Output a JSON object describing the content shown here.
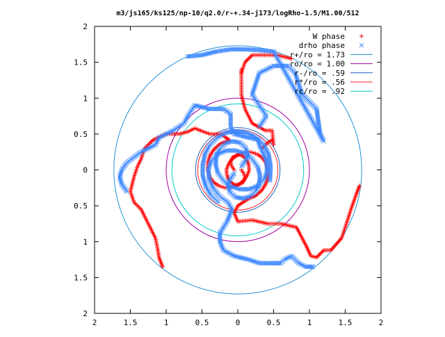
{
  "chart_data": {
    "type": "scatter",
    "title": "m3/js165/ks125/np-10/q2.0/r-+.34-j173/logRho-1.5/M1.00/512",
    "xlabel": "",
    "ylabel": "",
    "xlim": [
      -2,
      2
    ],
    "ylim": [
      -2,
      2
    ],
    "x_ticks": [
      -2,
      -1.5,
      -1,
      -0.5,
      0,
      0.5,
      1,
      1.5,
      2
    ],
    "y_ticks": [
      -2,
      -1.5,
      -1,
      -0.5,
      0,
      0.5,
      1,
      1.5,
      2
    ],
    "x_tick_labels": [
      "2",
      "1.5",
      "1",
      "0.5",
      "0",
      "0.5",
      "1",
      "1.5",
      "2"
    ],
    "y_tick_labels": [
      "2",
      "1.5",
      "1",
      "0.5",
      "0",
      "0.5",
      "1",
      "1.5",
      "2"
    ],
    "grid": false,
    "legend_position": "top-right",
    "series": [
      {
        "name": "W phase",
        "marker": "plus",
        "color": "#ff0000",
        "arms": [
          [
            [
              -0.05,
              0.0
            ],
            [
              -0.09,
              0.06
            ],
            [
              -0.1,
              0.12
            ],
            [
              -0.07,
              0.18
            ],
            [
              -0.01,
              0.21
            ],
            [
              0.06,
              0.2
            ],
            [
              0.12,
              0.15
            ],
            [
              0.15,
              0.08
            ],
            [
              0.16,
              0.0
            ],
            [
              0.13,
              -0.08
            ],
            [
              0.08,
              -0.15
            ],
            [
              0.0,
              -0.21
            ],
            [
              -0.09,
              -0.24
            ],
            [
              -0.18,
              -0.25
            ],
            [
              -0.27,
              -0.22
            ],
            [
              -0.34,
              -0.17
            ],
            [
              -0.39,
              -0.1
            ],
            [
              -0.42,
              0.0
            ],
            [
              -0.42,
              0.1
            ],
            [
              -0.39,
              0.2
            ],
            [
              -0.33,
              0.29
            ],
            [
              -0.25,
              0.36
            ],
            [
              -0.18,
              0.39
            ],
            [
              -0.12,
              0.42
            ],
            [
              -0.24,
              0.5
            ],
            [
              -0.39,
              0.5
            ],
            [
              -0.5,
              0.54
            ],
            [
              -0.6,
              0.58
            ],
            [
              -0.7,
              0.53
            ],
            [
              -0.82,
              0.5
            ],
            [
              -1.0,
              0.5
            ],
            [
              -1.18,
              0.42
            ],
            [
              -1.3,
              0.3
            ],
            [
              -1.35,
              0.15
            ],
            [
              -1.4,
              0.05
            ],
            [
              -1.45,
              -0.1
            ],
            [
              -1.5,
              -0.3
            ],
            [
              -1.45,
              -0.45
            ],
            [
              -1.4,
              -0.5
            ],
            [
              -1.35,
              -0.55
            ],
            [
              -1.25,
              -0.75
            ],
            [
              -1.15,
              -0.95
            ],
            [
              -1.12,
              -1.1
            ],
            [
              -1.1,
              -1.22
            ],
            [
              -1.05,
              -1.35
            ]
          ],
          [
            [
              0.05,
              0.0
            ],
            [
              0.09,
              -0.06
            ],
            [
              0.1,
              -0.12
            ],
            [
              0.07,
              -0.18
            ],
            [
              0.01,
              -0.21
            ],
            [
              -0.06,
              -0.2
            ],
            [
              -0.12,
              -0.15
            ],
            [
              -0.15,
              -0.08
            ],
            [
              -0.16,
              0.0
            ],
            [
              -0.13,
              0.08
            ],
            [
              -0.08,
              0.15
            ],
            [
              0.0,
              0.21
            ],
            [
              0.09,
              0.24
            ],
            [
              0.18,
              0.25
            ],
            [
              0.27,
              0.22
            ],
            [
              0.34,
              0.17
            ],
            [
              0.39,
              0.1
            ],
            [
              0.42,
              0.0
            ],
            [
              0.42,
              -0.1
            ],
            [
              0.39,
              -0.2
            ],
            [
              0.33,
              -0.29
            ],
            [
              0.25,
              -0.36
            ],
            [
              0.18,
              -0.39
            ],
            [
              0.12,
              -0.42
            ],
            [
              0.0,
              -0.5
            ],
            [
              -0.05,
              -0.6
            ],
            [
              0.0,
              -0.72
            ],
            [
              0.2,
              -0.7
            ],
            [
              0.42,
              -0.75
            ],
            [
              0.6,
              -0.75
            ],
            [
              0.82,
              -0.8
            ],
            [
              0.95,
              -1.05
            ],
            [
              1.02,
              -1.2
            ],
            [
              1.1,
              -1.22
            ],
            [
              1.2,
              -1.12
            ],
            [
              1.3,
              -1.12
            ],
            [
              1.45,
              -0.95
            ],
            [
              1.5,
              -0.8
            ],
            [
              1.58,
              -0.55
            ],
            [
              1.65,
              -0.35
            ],
            [
              1.7,
              -0.22
            ]
          ],
          [
            [
              0.34,
              0.3
            ],
            [
              0.42,
              0.38
            ],
            [
              0.48,
              0.42
            ],
            [
              0.5,
              0.35
            ],
            [
              0.48,
              0.55
            ],
            [
              0.38,
              0.55
            ],
            [
              0.2,
              0.65
            ],
            [
              0.1,
              0.85
            ],
            [
              0.05,
              1.05
            ],
            [
              0.05,
              1.2
            ],
            [
              0.05,
              1.4
            ],
            [
              0.05,
              1.35
            ],
            [
              0.1,
              1.5
            ],
            [
              0.2,
              1.6
            ],
            [
              0.35,
              1.6
            ],
            [
              0.55,
              1.6
            ],
            [
              0.75,
              1.55
            ]
          ]
        ]
      },
      {
        "name": "drho phase",
        "marker": "cross",
        "color": "#3a86ff",
        "arms": [
          [
            [
              0.05,
              0.05
            ],
            [
              0.11,
              0.13
            ],
            [
              0.14,
              0.22
            ],
            [
              0.11,
              0.31
            ],
            [
              0.03,
              0.38
            ],
            [
              -0.07,
              0.4
            ],
            [
              -0.17,
              0.37
            ],
            [
              -0.25,
              0.3
            ],
            [
              -0.3,
              0.2
            ],
            [
              -0.31,
              0.08
            ],
            [
              -0.28,
              -0.04
            ],
            [
              -0.2,
              -0.15
            ],
            [
              -0.1,
              -0.23
            ],
            [
              0.03,
              -0.27
            ],
            [
              0.16,
              -0.27
            ],
            [
              0.28,
              -0.22
            ],
            [
              0.37,
              -0.13
            ],
            [
              0.41,
              -0.01
            ],
            [
              0.4,
              0.13
            ],
            [
              0.34,
              0.26
            ],
            [
              0.3,
              0.35
            ],
            [
              0.28,
              0.42
            ],
            [
              0.15,
              0.45
            ],
            [
              -0.05,
              0.5
            ],
            [
              -0.1,
              0.6
            ],
            [
              -0.1,
              0.78
            ],
            [
              -0.2,
              0.85
            ],
            [
              -0.4,
              0.85
            ],
            [
              -0.6,
              0.9
            ],
            [
              -0.7,
              0.75
            ],
            [
              -0.75,
              0.65
            ],
            [
              -0.9,
              0.55
            ],
            [
              -1.0,
              0.5
            ],
            [
              -1.1,
              0.45
            ],
            [
              -1.15,
              0.35
            ],
            [
              -1.35,
              0.25
            ],
            [
              -1.55,
              0.1
            ],
            [
              -1.62,
              0.0
            ],
            [
              -1.65,
              -0.1
            ],
            [
              -1.62,
              -0.2
            ],
            [
              -1.55,
              -0.3
            ]
          ],
          [
            [
              -0.05,
              -0.05
            ],
            [
              -0.11,
              -0.13
            ],
            [
              -0.14,
              -0.22
            ],
            [
              -0.11,
              -0.31
            ],
            [
              -0.03,
              -0.38
            ],
            [
              0.07,
              -0.4
            ],
            [
              0.17,
              -0.37
            ],
            [
              0.25,
              -0.3
            ],
            [
              0.3,
              -0.2
            ],
            [
              0.31,
              -0.08
            ],
            [
              0.28,
              0.04
            ],
            [
              0.2,
              0.15
            ],
            [
              0.1,
              0.23
            ],
            [
              -0.03,
              0.27
            ],
            [
              -0.16,
              0.27
            ],
            [
              -0.28,
              0.22
            ],
            [
              -0.37,
              0.13
            ],
            [
              -0.41,
              0.01
            ],
            [
              -0.4,
              -0.13
            ],
            [
              -0.34,
              -0.26
            ],
            [
              -0.25,
              -0.37
            ],
            [
              -0.14,
              -0.45
            ],
            [
              -0.08,
              -0.55
            ],
            [
              -0.15,
              -0.72
            ],
            [
              -0.25,
              -0.88
            ],
            [
              -0.25,
              -1.0
            ],
            [
              -0.2,
              -1.12
            ],
            [
              -0.05,
              -1.2
            ],
            [
              0.15,
              -1.25
            ],
            [
              0.3,
              -1.3
            ],
            [
              0.5,
              -1.3
            ],
            [
              0.6,
              -1.3
            ],
            [
              0.65,
              -1.25
            ],
            [
              0.75,
              -1.2
            ],
            [
              0.85,
              -1.3
            ],
            [
              0.95,
              -1.35
            ],
            [
              1.05,
              -1.35
            ]
          ],
          [
            [
              0.3,
              0.6
            ],
            [
              0.4,
              0.75
            ],
            [
              0.3,
              0.9
            ],
            [
              0.2,
              1.05
            ],
            [
              0.25,
              1.2
            ],
            [
              0.3,
              1.35
            ],
            [
              0.5,
              1.45
            ],
            [
              0.7,
              1.45
            ],
            [
              0.8,
              1.35
            ],
            [
              0.85,
              1.2
            ],
            [
              0.9,
              1.05
            ],
            [
              1.0,
              0.95
            ],
            [
              1.1,
              0.85
            ],
            [
              1.15,
              0.5
            ],
            [
              1.2,
              0.4
            ],
            [
              0.5,
              1.65
            ],
            [
              0.3,
              1.67
            ],
            [
              0.1,
              1.68
            ],
            [
              -0.1,
              1.68
            ],
            [
              -0.3,
              1.65
            ],
            [
              -0.5,
              1.6
            ],
            [
              -0.7,
              1.58
            ]
          ],
          [
            [
              0.45,
              -0.15
            ],
            [
              0.46,
              0.05
            ],
            [
              0.43,
              0.22
            ],
            [
              0.36,
              0.36
            ],
            [
              0.25,
              0.46
            ],
            [
              0.12,
              0.52
            ],
            [
              -0.02,
              0.54
            ],
            [
              -0.16,
              0.52
            ],
            [
              -0.29,
              0.45
            ],
            [
              -0.39,
              0.35
            ],
            [
              -0.46,
              0.22
            ],
            [
              -0.49,
              0.07
            ],
            [
              -0.49,
              -0.08
            ],
            [
              -0.45,
              -0.22
            ],
            [
              -0.38,
              -0.35
            ],
            [
              -0.27,
              -0.45
            ]
          ]
        ]
      }
    ],
    "circles": [
      {
        "name": "r+/ro = 1.73",
        "radius": 1.73,
        "color": "#1e90d6"
      },
      {
        "name": "ro/ro = 1.00",
        "radius": 1.0,
        "color": "#a000a0"
      },
      {
        "name": "r-/ro = .59",
        "radius": 0.59,
        "color": "#1e60c0"
      },
      {
        "name": "r*/ro = .56",
        "radius": 0.56,
        "color": "#ff2020"
      },
      {
        "name": "rc/ro = .92",
        "radius": 0.92,
        "color": "#00c8c8"
      }
    ],
    "legend": [
      {
        "label": "W phase",
        "symbol": "+",
        "color": "#ff0000"
      },
      {
        "label": "drho phase",
        "symbol": "×",
        "color": "#3a86ff"
      },
      {
        "label": "r+/ro = 1.73",
        "symbol": "line",
        "color": "#1e90d6"
      },
      {
        "label": "ro/ro = 1.00",
        "symbol": "line",
        "color": "#a000a0"
      },
      {
        "label": "r-/ro = .59",
        "symbol": "line",
        "color": "#1e60c0"
      },
      {
        "label": "r*/ro = .56",
        "symbol": "line",
        "color": "#ff2020"
      },
      {
        "label": "rc/ro = .92",
        "symbol": "line",
        "color": "#00c8c8"
      }
    ]
  }
}
